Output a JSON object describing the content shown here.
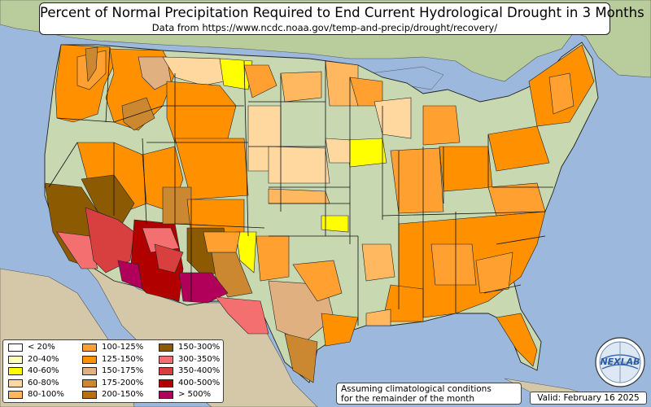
{
  "title": "Percent of Normal Precipitation Required to End Current Hydrological Drought in 3 Months",
  "subtitle": "Data from https://www.ncdc.noaa.gov/temp-and-precip/drought/recovery/",
  "legend": {
    "items": [
      {
        "label": "< 20%",
        "color": "#ffffff"
      },
      {
        "label": "20-40%",
        "color": "#ffffc0"
      },
      {
        "label": "40-60%",
        "color": "#ffff00"
      },
      {
        "label": "60-80%",
        "color": "#ffd8a0"
      },
      {
        "label": "80-100%",
        "color": "#ffb860"
      },
      {
        "label": "100-125%",
        "color": "#ffa030"
      },
      {
        "label": "125-150%",
        "color": "#ff9000"
      },
      {
        "label": "150-175%",
        "color": "#e0b080"
      },
      {
        "label": "175-200%",
        "color": "#cc8830"
      },
      {
        "label": "200-150%",
        "color": "#b87010"
      },
      {
        "label": "150-300%",
        "color": "#8c5a00"
      },
      {
        "label": "300-350%",
        "color": "#f47070"
      },
      {
        "label": "350-400%",
        "color": "#d84040"
      },
      {
        "label": "400-500%",
        "color": "#b00000"
      },
      {
        "label": "> 500%",
        "color": "#b0005a"
      }
    ]
  },
  "note": {
    "line1": "Assuming climatological conditions",
    "line2": "for the remainder of the month"
  },
  "valid": "Valid: February 16 2025",
  "logo_text": "NEXLAB",
  "colors": {
    "ocean": "#9cb8dc",
    "land": "#c8d8b0",
    "border": "#000000"
  }
}
